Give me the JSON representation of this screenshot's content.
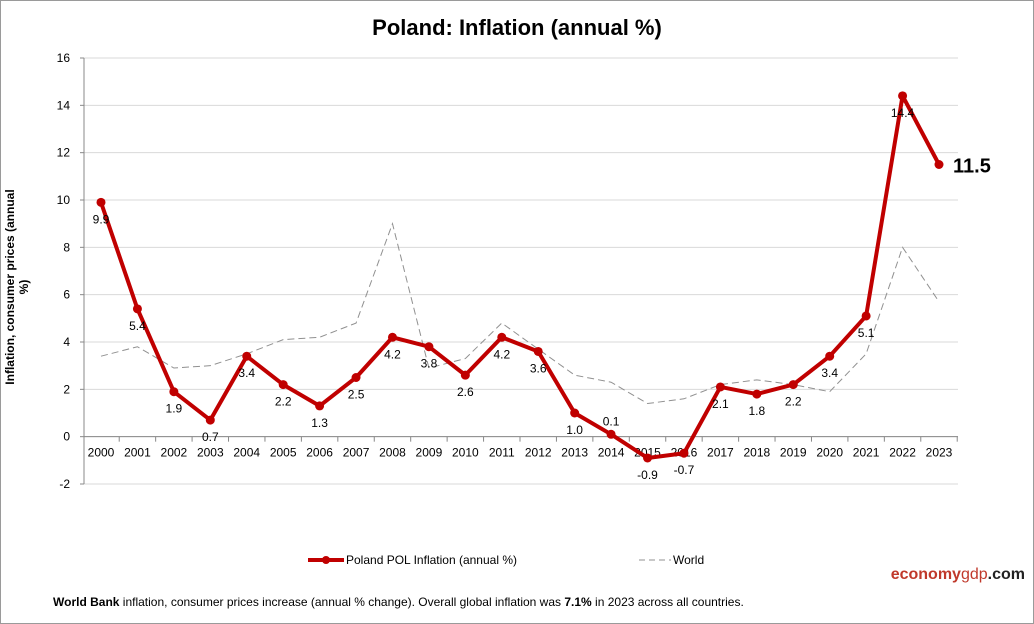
{
  "chart_data": {
    "type": "line",
    "title": "Poland: Inflation (annual %)",
    "ylabel": "Inflation, consumer prices (annual %)",
    "xlabel": "",
    "ylim": [
      -2,
      16
    ],
    "yticks": [
      -2,
      0,
      2,
      4,
      6,
      8,
      10,
      12,
      14,
      16
    ],
    "grid": true,
    "legend_position": "bottom",
    "categories": [
      "2000",
      "2001",
      "2002",
      "2003",
      "2004",
      "2005",
      "2006",
      "2007",
      "2008",
      "2009",
      "2010",
      "2011",
      "2012",
      "2013",
      "2014",
      "2015",
      "2016",
      "2017",
      "2018",
      "2019",
      "2020",
      "2021",
      "2022",
      "2023"
    ],
    "series": [
      {
        "name": "Poland POL Inflation (annual %)",
        "color": "#c00000",
        "values": [
          9.9,
          5.4,
          1.9,
          0.7,
          3.4,
          2.2,
          1.3,
          2.5,
          4.2,
          3.8,
          2.6,
          4.2,
          3.6,
          1.0,
          0.1,
          -0.9,
          -0.7,
          2.1,
          1.8,
          2.2,
          3.4,
          5.1,
          14.4,
          11.5
        ],
        "labels": [
          "9.9",
          "5.4",
          "1.9",
          "0.7",
          "3.4",
          "2.2",
          "1.3",
          "2.5",
          "4.2",
          "3.8",
          "2.6",
          "4.2",
          "3.6",
          "1.0",
          "0.1",
          "-0.9",
          "-0.7",
          "2.1",
          "1.8",
          "2.2",
          "3.4",
          "5.1",
          "14.4",
          "11.5"
        ]
      },
      {
        "name": "World",
        "color": "#909090",
        "values": [
          3.4,
          3.8,
          2.9,
          3.0,
          3.5,
          4.1,
          4.2,
          4.8,
          9.0,
          2.9,
          3.3,
          4.8,
          3.7,
          2.6,
          2.3,
          1.4,
          1.6,
          2.2,
          2.4,
          2.2,
          1.9,
          3.5,
          8.0,
          5.7
        ]
      }
    ]
  },
  "brand": {
    "part1": "economy",
    "part2": "gdp",
    "part3": ".com"
  },
  "footer": {
    "source_bold": "World Bank",
    "text1": " inflation, consumer prices increase (annual % change).   Overall global inflation was ",
    "value_bold": "7.1%",
    "text2": " in 2023 across all countries."
  }
}
